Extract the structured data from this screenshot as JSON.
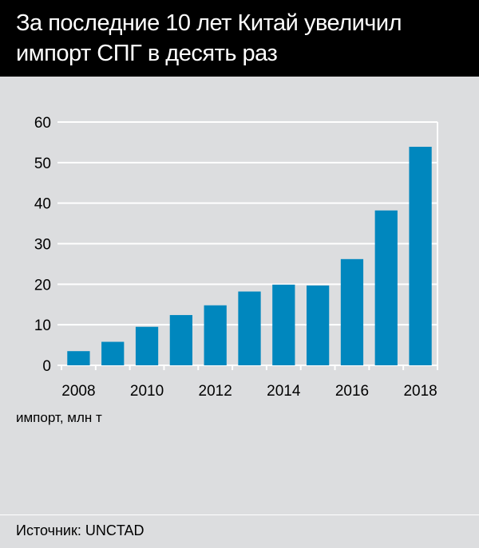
{
  "chart_data": {
    "type": "bar",
    "title": "За последние 10 лет Китай увеличил импорт СПГ в десять раз",
    "categories": [
      "2008",
      "2009",
      "2010",
      "2011",
      "2012",
      "2013",
      "2014",
      "2015",
      "2016",
      "2017",
      "2018"
    ],
    "values": [
      3.5,
      5.8,
      9.5,
      12.4,
      14.8,
      18.2,
      19.9,
      19.7,
      26.2,
      38.2,
      53.9
    ],
    "x_tick_labels": [
      "2008",
      "2010",
      "2012",
      "2014",
      "2016",
      "2018"
    ],
    "y_ticks": [
      0,
      10,
      20,
      30,
      40,
      50,
      60
    ],
    "ylim": [
      0,
      60
    ],
    "ylabel": "импорт, млн т",
    "xlabel": "",
    "grid": true,
    "bar_color": "#0087be",
    "source": "Источник: UNCTAD"
  }
}
